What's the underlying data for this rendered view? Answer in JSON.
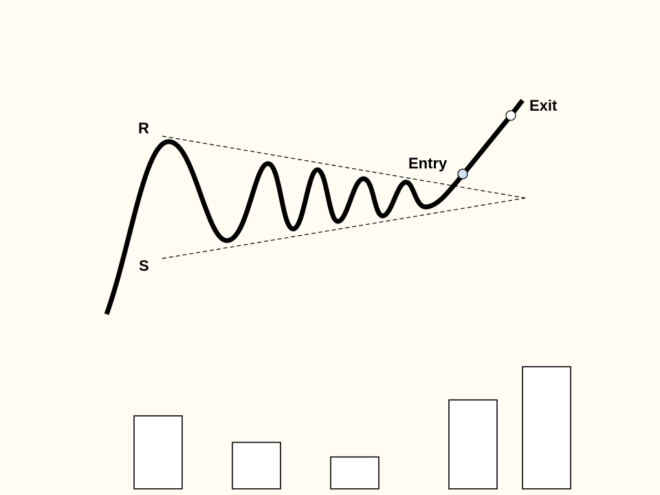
{
  "labels": {
    "resistance": "R",
    "support": "S",
    "entry": "Entry",
    "exit": "Exit"
  },
  "markers": {
    "entry_color": "#cfe0f2",
    "exit_color": "#ffffff"
  },
  "volume_bars": [
    0.55,
    0.35,
    0.24,
    0.67,
    0.92
  ],
  "colors": {
    "background": "#fffcf4",
    "line": "#000000"
  }
}
